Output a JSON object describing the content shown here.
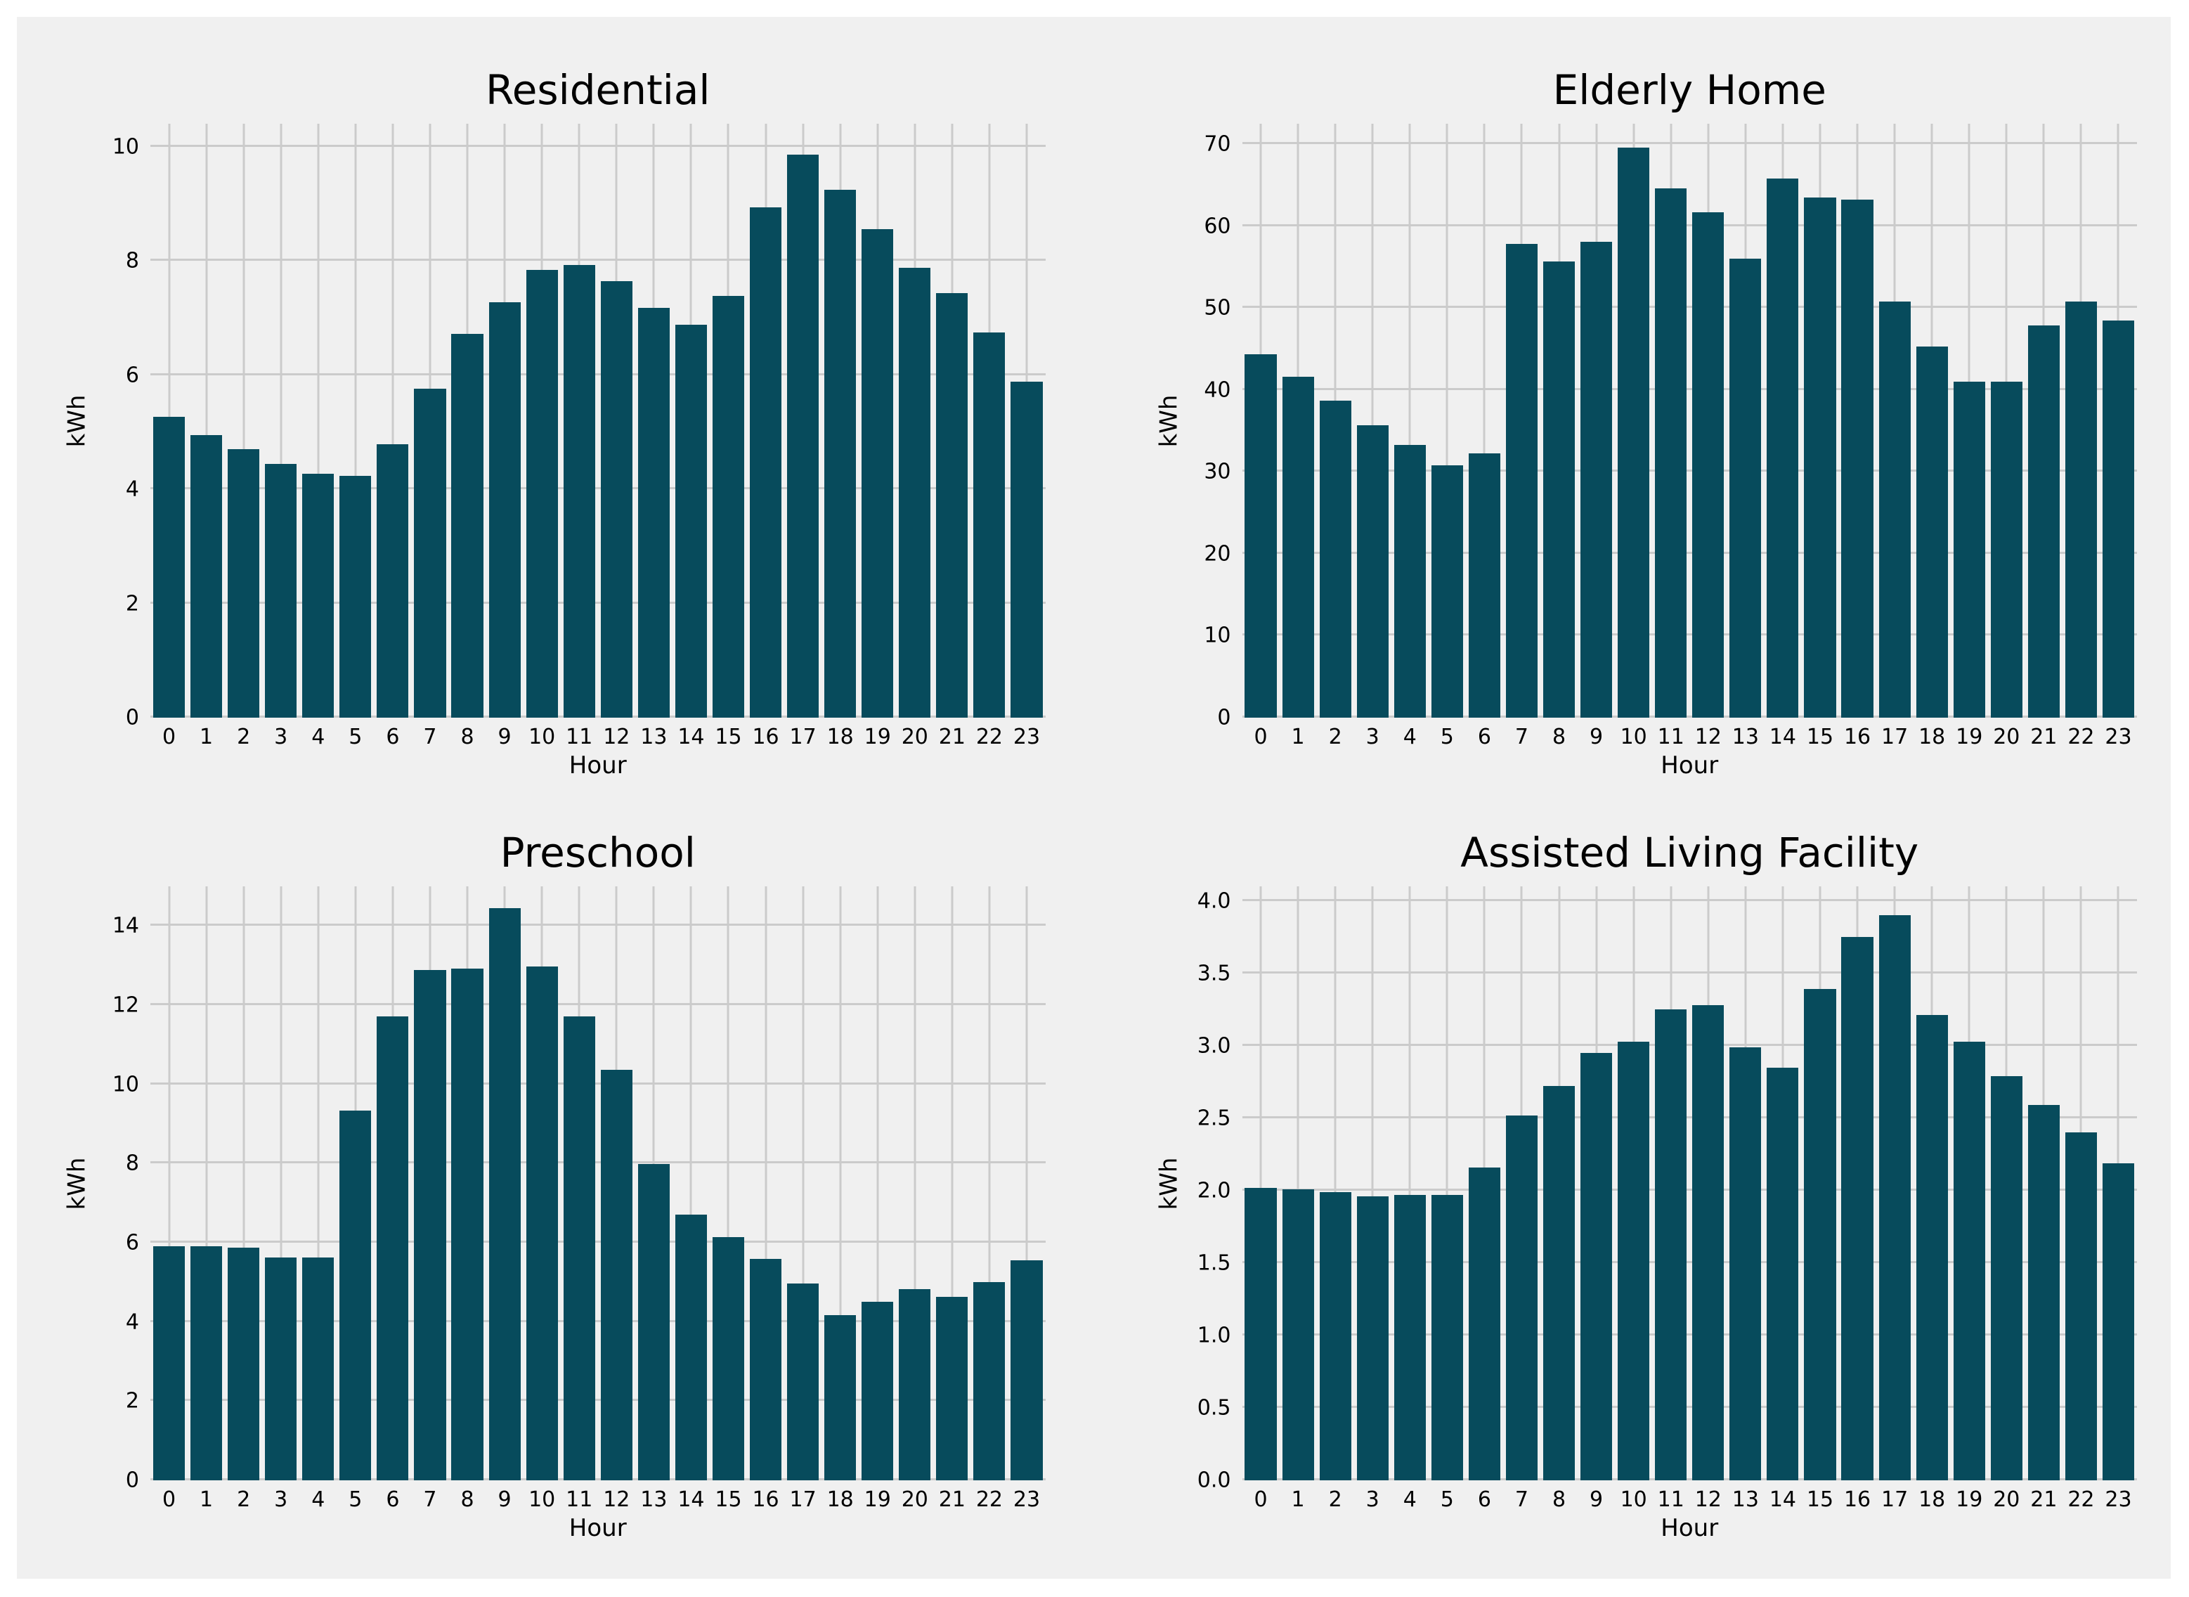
{
  "style": {
    "page_background": "#ffffff",
    "figure_background": "#f0f0f0",
    "bar_color": "#074b5c",
    "grid_color": "#cbcbcb",
    "text_color": "#000000"
  },
  "chart_data": [
    {
      "type": "bar",
      "title": "Residential",
      "xlabel": "Hour",
      "ylabel": "kWh",
      "categories": [
        "0",
        "1",
        "2",
        "3",
        "4",
        "5",
        "6",
        "7",
        "8",
        "9",
        "10",
        "11",
        "12",
        "13",
        "14",
        "15",
        "16",
        "17",
        "18",
        "19",
        "20",
        "21",
        "22",
        "23"
      ],
      "values": [
        5.27,
        4.95,
        4.7,
        4.44,
        4.27,
        4.24,
        4.79,
        5.76,
        6.72,
        7.28,
        7.84,
        7.93,
        7.64,
        7.18,
        6.88,
        7.38,
        8.93,
        9.86,
        9.24,
        8.56,
        7.88,
        7.44,
        6.74,
        5.88
      ],
      "yticks": [
        0,
        2,
        4,
        6,
        8,
        10
      ],
      "ytick_labels": [
        "0",
        "2",
        "4",
        "6",
        "8",
        "10"
      ],
      "ylim": [
        0,
        10.4
      ],
      "grid": "on",
      "legend": "none"
    },
    {
      "type": "bar",
      "title": "Elderly Home",
      "xlabel": "Hour",
      "ylabel": "kWh",
      "categories": [
        "0",
        "1",
        "2",
        "3",
        "4",
        "5",
        "6",
        "7",
        "8",
        "9",
        "10",
        "11",
        "12",
        "13",
        "14",
        "15",
        "16",
        "17",
        "18",
        "19",
        "20",
        "21",
        "22",
        "23"
      ],
      "values": [
        44.4,
        41.6,
        38.7,
        35.7,
        33.3,
        30.8,
        32.3,
        57.8,
        55.7,
        58.1,
        69.6,
        64.6,
        61.7,
        56.0,
        65.8,
        63.5,
        63.2,
        50.8,
        45.3,
        41.0,
        41.0,
        47.9,
        50.8,
        48.5
      ],
      "yticks": [
        0,
        10,
        20,
        30,
        40,
        50,
        60,
        70
      ],
      "ytick_labels": [
        "0",
        "10",
        "20",
        "30",
        "40",
        "50",
        "60",
        "70"
      ],
      "ylim": [
        0,
        72.5
      ],
      "grid": "on",
      "legend": "none"
    },
    {
      "type": "bar",
      "title": "Preschool",
      "xlabel": "Hour",
      "ylabel": "kWh",
      "categories": [
        "0",
        "1",
        "2",
        "3",
        "4",
        "5",
        "6",
        "7",
        "8",
        "9",
        "10",
        "11",
        "12",
        "13",
        "14",
        "15",
        "16",
        "17",
        "18",
        "19",
        "20",
        "21",
        "22",
        "23"
      ],
      "values": [
        5.92,
        5.92,
        5.87,
        5.63,
        5.63,
        9.34,
        11.72,
        12.88,
        12.93,
        14.45,
        12.97,
        11.72,
        10.37,
        7.99,
        6.71,
        6.15,
        5.6,
        4.97,
        4.18,
        4.51,
        4.82,
        4.64,
        5.0,
        5.56
      ],
      "yticks": [
        0,
        2,
        4,
        6,
        8,
        10,
        12,
        14
      ],
      "ytick_labels": [
        "0",
        "2",
        "4",
        "6",
        "8",
        "10",
        "12",
        "14"
      ],
      "ylim": [
        0,
        15.0
      ],
      "grid": "on",
      "legend": "none"
    },
    {
      "type": "bar",
      "title": "Assisted Living Facility",
      "xlabel": "Hour",
      "ylabel": "kWh",
      "categories": [
        "0",
        "1",
        "2",
        "3",
        "4",
        "5",
        "6",
        "7",
        "8",
        "9",
        "10",
        "11",
        "12",
        "13",
        "14",
        "15",
        "16",
        "17",
        "18",
        "19",
        "20",
        "21",
        "22",
        "23"
      ],
      "values": [
        2.02,
        2.01,
        1.99,
        1.96,
        1.97,
        1.97,
        2.16,
        2.52,
        2.72,
        2.95,
        3.03,
        3.25,
        3.28,
        2.99,
        2.85,
        3.39,
        3.75,
        3.9,
        3.21,
        3.03,
        2.79,
        2.59,
        2.4,
        2.19
      ],
      "yticks": [
        0.0,
        0.5,
        1.0,
        1.5,
        2.0,
        2.5,
        3.0,
        3.5,
        4.0
      ],
      "ytick_labels": [
        "0.0",
        "0.5",
        "1.0",
        "1.5",
        "2.0",
        "2.5",
        "3.0",
        "3.5",
        "4.0"
      ],
      "ylim": [
        0,
        4.1
      ],
      "grid": "on",
      "legend": "none"
    }
  ]
}
